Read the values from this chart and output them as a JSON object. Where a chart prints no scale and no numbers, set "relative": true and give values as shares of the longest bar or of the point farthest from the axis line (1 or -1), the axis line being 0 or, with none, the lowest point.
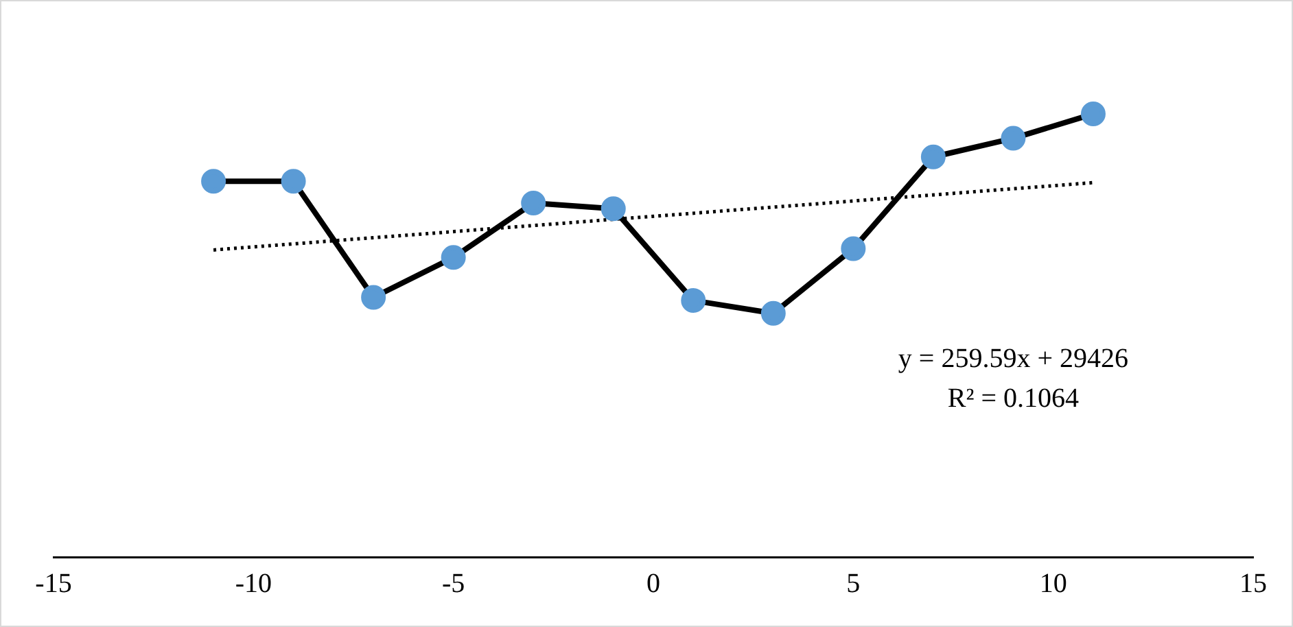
{
  "chart_data": {
    "type": "line",
    "relative": true,
    "xlim": [
      -15,
      15
    ],
    "xticks": [
      -15,
      -10,
      -5,
      0,
      5,
      10,
      15
    ],
    "tick_labels": "x",
    "grid": false,
    "legend": false,
    "marker": "circle",
    "annotations": [
      "y = 259.59x + 29426",
      "R² = 0.1064"
    ],
    "series": [
      {
        "color": "#000000",
        "colors": [
          "#5b9bd5",
          "#5b9bd5",
          "#5b9bd5",
          "#5b9bd5",
          "#5b9bd5",
          "#5b9bd5",
          "#5b9bd5",
          "#5b9bd5",
          "#5b9bd5",
          "#5b9bd5",
          "#5b9bd5",
          "#5b9bd5"
        ],
        "line_style": "solid",
        "x": [
          -11,
          -9,
          -7,
          -5,
          -3,
          -1,
          1,
          3,
          5,
          7,
          9,
          11
        ],
        "values": [
          0.848,
          0.848,
          0.586,
          0.676,
          0.799,
          0.786,
          0.579,
          0.55,
          0.696,
          0.903,
          0.945,
          1
        ]
      },
      {
        "color": "#000000",
        "line_style": "dotted",
        "marker": "none",
        "x": [
          -11,
          11
        ],
        "values": [
          0.693,
          0.845
        ]
      }
    ]
  }
}
